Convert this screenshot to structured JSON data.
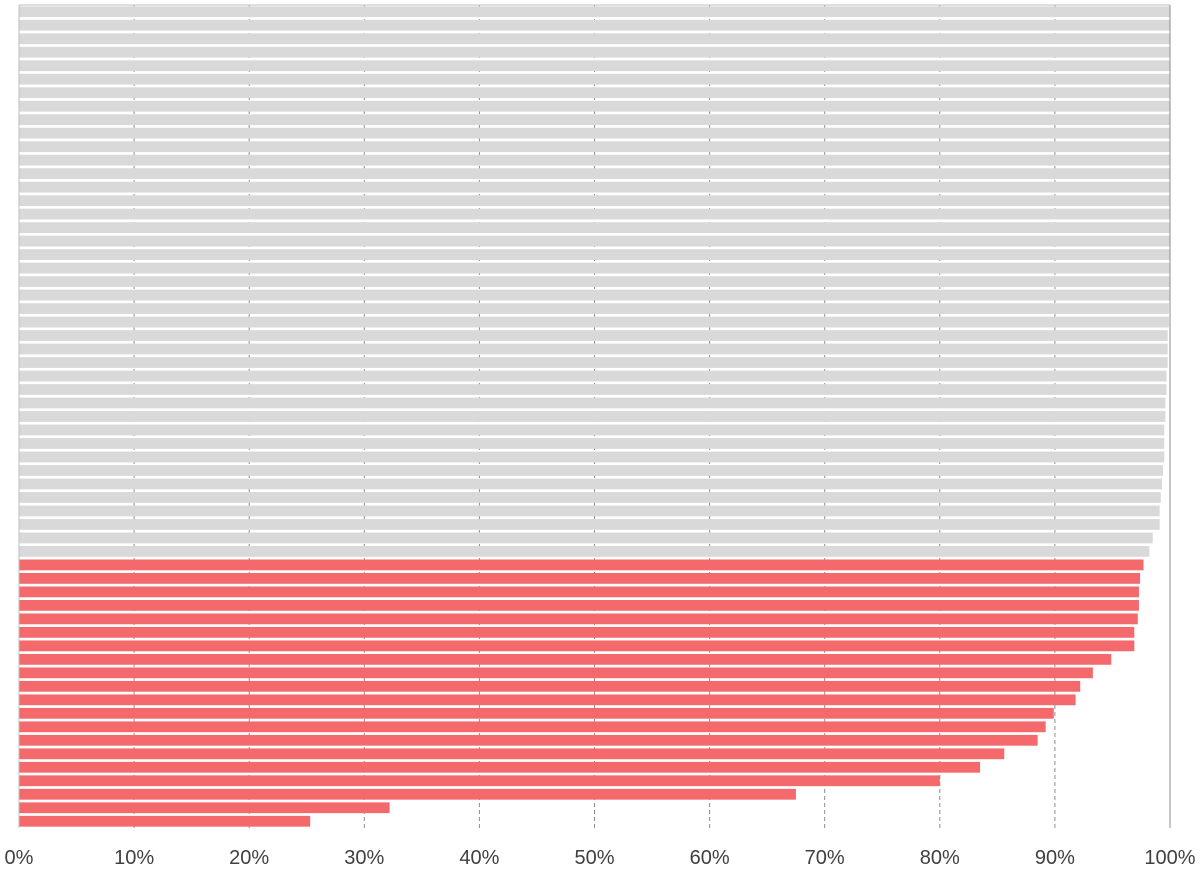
{
  "chart_data": {
    "type": "bar",
    "orientation": "horizontal",
    "title": "",
    "xlabel": "",
    "ylabel": "",
    "xlim": [
      0,
      100
    ],
    "x_tick_labels": [
      "0%",
      "10%",
      "20%",
      "30%",
      "40%",
      "50%",
      "60%",
      "70%",
      "80%",
      "90%",
      "100%"
    ],
    "grid": "vertical dashed",
    "legend": "none",
    "colors": {
      "highlight": "#f4696b",
      "other": "#d9d9d9",
      "grid": "#8c8c8c",
      "text": "#404040"
    },
    "series": [
      {
        "color_group": "other",
        "values": [
          100,
          100,
          100,
          100,
          100,
          100,
          100,
          100,
          100,
          100,
          100,
          100,
          100,
          100,
          100,
          100,
          100,
          100,
          100,
          100,
          100,
          100,
          99.9,
          99.9,
          99.8,
          99.8,
          99.8,
          99.7,
          99.7,
          99.6,
          99.6,
          99.5,
          99.5,
          99.5,
          99.4,
          99.3,
          99.2,
          99.1,
          99.1,
          98.5,
          98.2
        ]
      },
      {
        "color_group": "highlight",
        "values": [
          97.7,
          97.4,
          97.3,
          97.3,
          97.2,
          96.9,
          96.9,
          94.9,
          93.3,
          92.2,
          91.8,
          89.9,
          89.2,
          88.5,
          85.6,
          83.5,
          80,
          67.5,
          32.2,
          25.3
        ]
      }
    ]
  }
}
